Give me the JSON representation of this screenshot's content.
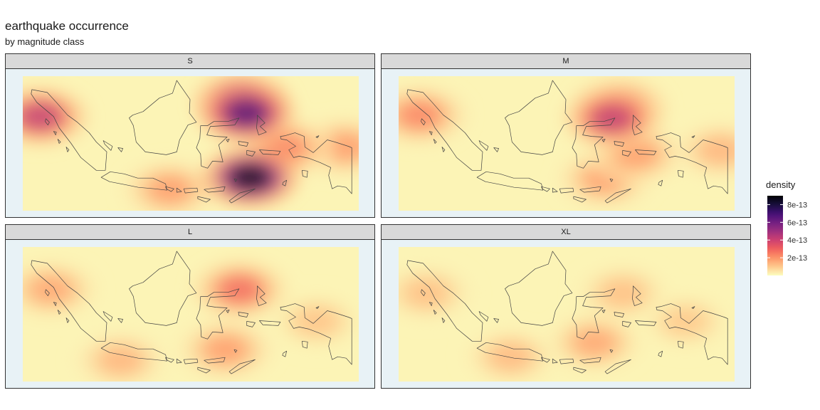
{
  "title": "earthquake occurrence",
  "subtitle": "by magnitude class",
  "legend": {
    "title": "density",
    "ticks": [
      "8e-13",
      "6e-13",
      "4e-13",
      "2e-13"
    ],
    "tick_values": [
      8e-13,
      6e-13,
      4e-13,
      2e-13
    ],
    "range": [
      0,
      9e-13
    ],
    "palette": [
      "#fcfdbf",
      "#fec98d",
      "#fd9567",
      "#f1605d",
      "#cd4071",
      "#9e2f7f",
      "#721f81",
      "#440f76",
      "#180f3d",
      "#000004"
    ]
  },
  "colors": {
    "panel_bg": "#e8f2f6",
    "strip_bg": "#d9d9d9",
    "land_outline": "#444444"
  },
  "chart_data": {
    "type": "heatmap",
    "facets": [
      {
        "label": "S",
        "density_peak": 9e-13,
        "hotspots": [
          {
            "lon": 126.5,
            "lat": -6.8,
            "density": 9e-13
          },
          {
            "lon": 126.0,
            "lat": 2.2,
            "density": 7e-13
          },
          {
            "lon": 125.3,
            "lat": 3.8,
            "density": 6e-13
          },
          {
            "lon": 96.5,
            "lat": 1.8,
            "density": 4.5e-13
          },
          {
            "lon": 131.5,
            "lat": -2.6,
            "density": 2.5e-13
          },
          {
            "lon": 115.0,
            "lat": -8.5,
            "density": 2e-13
          },
          {
            "lon": 140.0,
            "lat": -2.5,
            "density": 2e-13
          }
        ]
      },
      {
        "label": "M",
        "density_peak": 4.5e-13,
        "hotspots": [
          {
            "lon": 124.5,
            "lat": 1.5,
            "density": 4.5e-13
          },
          {
            "lon": 125.5,
            "lat": 3.0,
            "density": 3.5e-13
          },
          {
            "lon": 97.0,
            "lat": 2.0,
            "density": 2.5e-13
          },
          {
            "lon": 123.5,
            "lat": -7.0,
            "density": 2e-13
          },
          {
            "lon": 128.0,
            "lat": -3.5,
            "density": 2e-13
          },
          {
            "lon": 140.0,
            "lat": -3.0,
            "density": 1.5e-13
          }
        ]
      },
      {
        "label": "L",
        "density_peak": 3e-13,
        "hotspots": [
          {
            "lon": 125.0,
            "lat": 1.5,
            "density": 3e-13
          },
          {
            "lon": 123.0,
            "lat": -7.0,
            "density": 2e-13
          },
          {
            "lon": 98.0,
            "lat": 1.5,
            "density": 1.8e-13
          },
          {
            "lon": 108.0,
            "lat": -8.5,
            "density": 1.5e-13
          },
          {
            "lon": 136.0,
            "lat": -3.0,
            "density": 1.2e-13
          }
        ]
      },
      {
        "label": "XL",
        "density_peak": 1.8e-13,
        "hotspots": [
          {
            "lon": 122.0,
            "lat": -6.0,
            "density": 1.8e-13
          },
          {
            "lon": 110.0,
            "lat": -8.0,
            "density": 1.4e-13
          },
          {
            "lon": 98.0,
            "lat": 1.0,
            "density": 1.3e-13
          },
          {
            "lon": 126.0,
            "lat": 1.0,
            "density": 1.3e-13
          },
          {
            "lon": 135.0,
            "lat": -3.0,
            "density": 1.1e-13
          }
        ]
      }
    ]
  }
}
